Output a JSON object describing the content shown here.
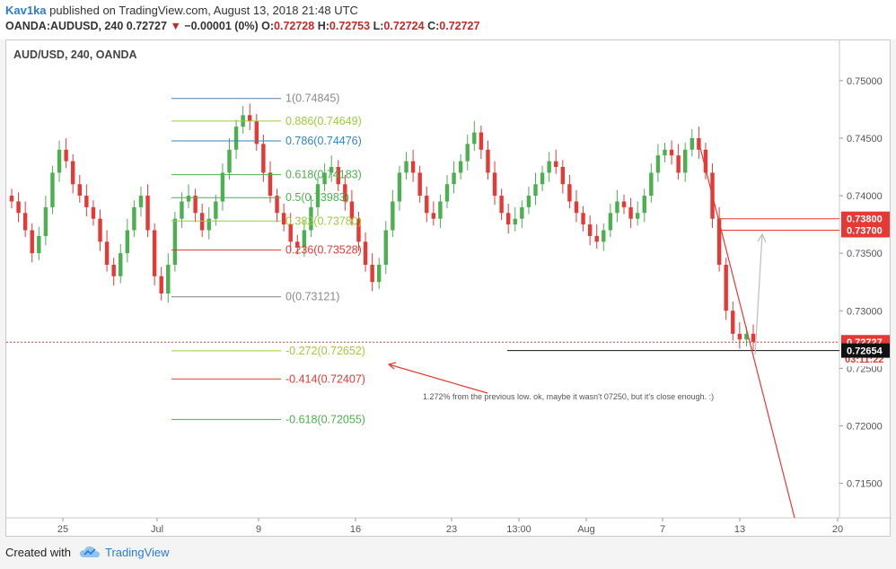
{
  "header": {
    "author": "Kav1ka",
    "published_text": "published on TradingView.com, August 13, 2018 21:48 UTC",
    "symbol": "OANDA:AUDUSD, 240",
    "last": "0.72727",
    "change": "−0.00001 (0%)",
    "o_label": "O:",
    "o_val": "0.72728",
    "h_label": "H:",
    "h_val": "0.72753",
    "l_label": "L:",
    "l_val": "0.72724",
    "c_label": "C:",
    "c_val": "0.72727"
  },
  "footer": {
    "created_with": "Created with",
    "brand": "TradingView"
  },
  "colors": {
    "up": "#4caf50",
    "down": "#e53935",
    "accent": "#2b7bd6"
  },
  "chart_data": {
    "type": "candlestick",
    "title": "AUD/USD, 240, OANDA",
    "ylim": [
      0.712,
      0.7535
    ],
    "y_ticks": [
      0.75,
      0.745,
      0.74,
      0.735,
      0.73,
      0.725,
      0.72,
      0.715
    ],
    "y_tick_labels": [
      "0.75000",
      "0.74500",
      "0.74000",
      "0.73500",
      "0.73000",
      "0.72500",
      "0.72000",
      "0.71500"
    ],
    "x_ticks": [
      "25",
      "Jul",
      "9",
      "16",
      "23",
      "13:00",
      "Aug",
      "7",
      "13",
      "20"
    ],
    "closes": [
      0.7395,
      0.7385,
      0.737,
      0.735,
      0.7365,
      0.739,
      0.742,
      0.744,
      0.743,
      0.741,
      0.74,
      0.739,
      0.738,
      0.736,
      0.734,
      0.733,
      0.735,
      0.737,
      0.739,
      0.74,
      0.737,
      0.733,
      0.7315,
      0.734,
      0.738,
      0.7395,
      0.74,
      0.7385,
      0.737,
      0.738,
      0.7395,
      0.742,
      0.744,
      0.746,
      0.747,
      0.7465,
      0.7445,
      0.742,
      0.74,
      0.7385,
      0.7375,
      0.736,
      0.7355,
      0.737,
      0.739,
      0.741,
      0.742,
      0.7425,
      0.741,
      0.7395,
      0.738,
      0.736,
      0.734,
      0.7325,
      0.734,
      0.737,
      0.7395,
      0.742,
      0.743,
      0.742,
      0.74,
      0.7385,
      0.738,
      0.7395,
      0.741,
      0.742,
      0.743,
      0.7445,
      0.7455,
      0.744,
      0.742,
      0.74,
      0.7385,
      0.7375,
      0.738,
      0.739,
      0.74,
      0.741,
      0.742,
      0.743,
      0.7425,
      0.741,
      0.7395,
      0.7385,
      0.7375,
      0.7365,
      0.736,
      0.737,
      0.7385,
      0.7395,
      0.739,
      0.738,
      0.7385,
      0.74,
      0.742,
      0.7435,
      0.744,
      0.7435,
      0.742,
      0.744,
      0.745,
      0.744,
      0.742,
      0.738,
      0.734,
      0.73,
      0.728,
      0.7275,
      0.728,
      0.7273
    ],
    "price_marks": [
      {
        "label": "0.73800",
        "value": 0.738,
        "color": "#e53935",
        "fill": true
      },
      {
        "label": "0.73700",
        "value": 0.737,
        "color": "#e53935",
        "fill": true
      },
      {
        "label": "0.72727",
        "value": 0.72727,
        "color": "#e53935",
        "fill": true
      },
      {
        "label": "03:11:22",
        "value": 0.72727,
        "color": "#e53935",
        "fill": false,
        "below": true
      },
      {
        "label": "0.72654",
        "value": 0.72654,
        "color": "#111111",
        "fill": true
      }
    ],
    "fib_levels": [
      {
        "label": "1(0.74845)",
        "value": 0.74845,
        "line": "#5a7fa8",
        "text": "#8a8a8a"
      },
      {
        "label": "0.886(0.74649)",
        "value": 0.74649,
        "line": "#9ccc3a",
        "text": "#9ccc3a"
      },
      {
        "label": "0.786(0.74476)",
        "value": 0.74476,
        "line": "#2e86c1",
        "text": "#2e86c1"
      },
      {
        "label": "0.618(0.74183)",
        "value": 0.74183,
        "line": "#4caf50",
        "text": "#4caf50"
      },
      {
        "label": "0.5(0.73983)",
        "value": 0.73983,
        "line": "#4caf50",
        "text": "#4caf50"
      },
      {
        "label": "0.382(0.73780)",
        "value": 0.7378,
        "line": "#9ccc3a",
        "text": "#9ccc3a"
      },
      {
        "label": "0.236(0.73528)",
        "value": 0.73528,
        "line": "#e53935",
        "text": "#e53935"
      },
      {
        "label": "0(0.73121)",
        "value": 0.73121,
        "line": "#808080",
        "text": "#8a8a8a"
      },
      {
        "label": "-0.272(0.72652)",
        "value": 0.72652,
        "line": "#9ccc3a",
        "text": "#9ccc3a"
      },
      {
        "label": "-0.414(0.72407)",
        "value": 0.72407,
        "line": "#e53935",
        "text": "#e53935"
      },
      {
        "label": "-0.618(0.72055)",
        "value": 0.72055,
        "line": "#4caf50",
        "text": "#4caf50"
      }
    ],
    "annotation": "1.272% from the previous low. ok, maybe it wasn't 07250, but it's close enough. :)",
    "current_price_line": 0.72727
  }
}
